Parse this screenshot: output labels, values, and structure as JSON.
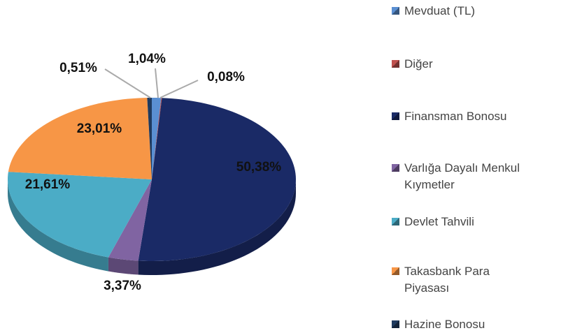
{
  "chart_data": {
    "type": "pie",
    "categories": [
      "Mevduat (TL)",
      "Diğer",
      "Finansman Bonosu",
      "Varlığa Dayalı Menkul Kıymetler",
      "Devlet Tahvili",
      "Takasbank Para Piyasası",
      "Hazine Bonosu"
    ],
    "values": [
      1.04,
      0.08,
      50.38,
      3.37,
      21.61,
      23.01,
      0.51
    ],
    "value_labels": [
      "1,04%",
      "0,08%",
      "50,38%",
      "3,37%",
      "21,61%",
      "23,01%",
      "0,51%"
    ],
    "colors": [
      "#5a8fd2",
      "#c0504d",
      "#1a2a66",
      "#8064a2",
      "#4bacc6",
      "#f79646",
      "#1f3a5f"
    ],
    "legend": "right"
  }
}
